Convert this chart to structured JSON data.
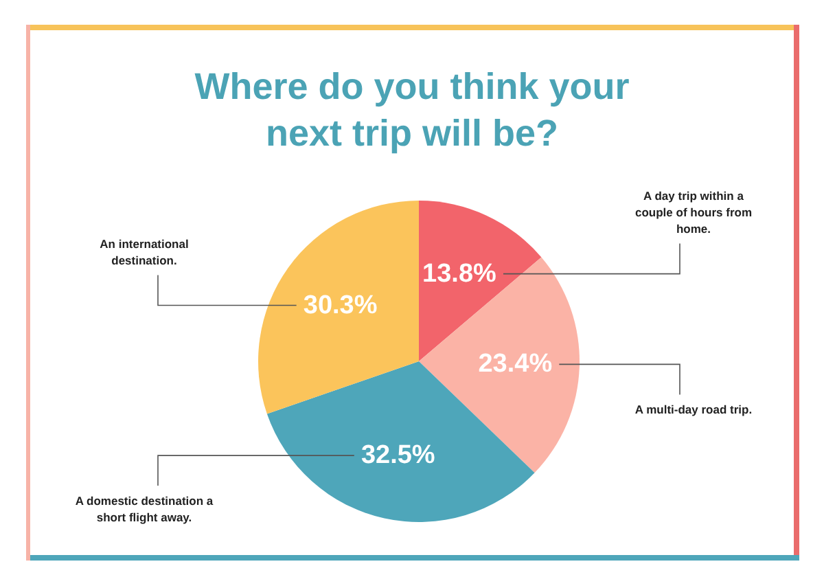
{
  "chart_data": {
    "type": "pie",
    "title": "Where do you think your next trip will be?",
    "categories": [
      "A day trip within a couple of hours from home.",
      "A multi-day road trip.",
      "A domestic destination a short flight away.",
      "An international destination."
    ],
    "values": [
      13.8,
      23.4,
      32.5,
      30.3
    ],
    "colors": [
      "#f2646b",
      "#fbb3a6",
      "#4ea6ba",
      "#fbc45b"
    ],
    "value_labels": [
      "13.8%",
      "23.4%",
      "32.5%",
      "30.3%"
    ]
  }
}
